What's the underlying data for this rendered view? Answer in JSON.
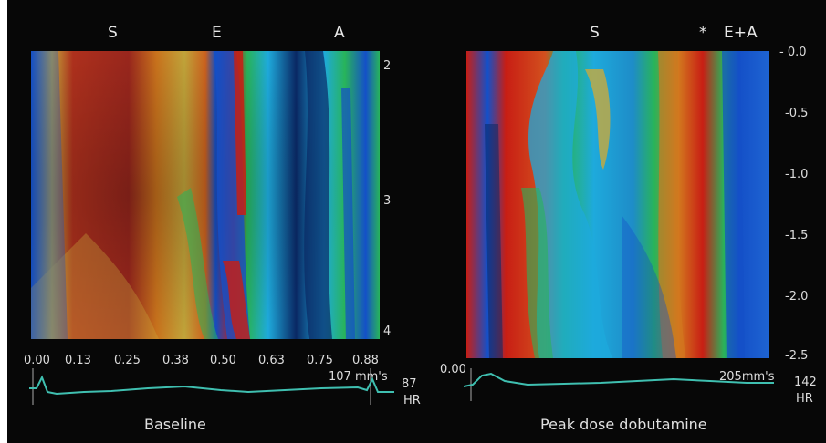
{
  "left_panel": {
    "phase_labels": [
      "S",
      "E",
      "A"
    ],
    "x_ticks": [
      "0.00",
      "0.13",
      "0.25",
      "0.38",
      "0.50",
      "0.63",
      "0.75",
      "0.88"
    ],
    "y_ticks": [
      "2",
      "3",
      "4"
    ],
    "speed": "107 mm's",
    "hr_value": "87",
    "hr_label": "HR",
    "caption": "Baseline"
  },
  "right_panel": {
    "phase_labels": [
      "S",
      "*",
      "E+A"
    ],
    "x_start": "0.00",
    "y_ticks": [
      "- 0.0",
      "-0.5",
      "-1.0",
      "-1.5",
      "-2.0",
      "-2.5"
    ],
    "speed": "205mm's",
    "hr_value": "142",
    "hr_label": "HR",
    "caption": "Peak dose dobutamine"
  },
  "colors": {
    "background": "#070707",
    "ecg_trace": "#3fbfb0",
    "red": "#c81e14",
    "orange": "#d2781e",
    "yellow": "#c8aa3c",
    "green": "#28b45a",
    "cyan": "#1eaadc",
    "blue": "#1450c8",
    "dark_blue": "#0a2864"
  }
}
